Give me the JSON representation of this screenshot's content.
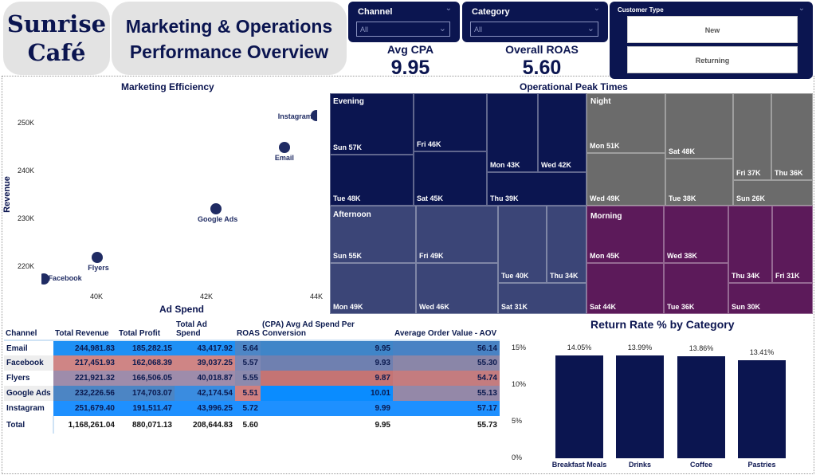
{
  "brand": {
    "line1": "Sunrise",
    "line2": "Café"
  },
  "header": {
    "line1": "Marketing & Operations",
    "line2": "Performance Overview"
  },
  "slicers": {
    "channel": {
      "label": "Channel",
      "value": "All"
    },
    "category": {
      "label": "Category",
      "value": "All"
    },
    "customer_type": {
      "label": "Customer Type",
      "options": [
        "New",
        "Returning"
      ]
    }
  },
  "kpis": {
    "avg_cpa": {
      "label": "Avg CPA",
      "value": "9.95"
    },
    "overall_roas": {
      "label": "Overall ROAS",
      "value": "5.60"
    }
  },
  "scatter": {
    "title": "Marketing Efficiency",
    "xlabel": "Ad Spend",
    "ylabel": "Revenue",
    "xticks": [
      "40K",
      "42K",
      "44K"
    ],
    "yticks": [
      "250K",
      "240K",
      "230K",
      "220K"
    ],
    "points": [
      {
        "label": "Instagram",
        "x": 43996.25,
        "y": 251679.4
      },
      {
        "label": "Email",
        "x": 43417.92,
        "y": 244981.83
      },
      {
        "label": "Google Ads",
        "x": 42174.54,
        "y": 232226.56
      },
      {
        "label": "Flyers",
        "x": 40018.87,
        "y": 221921.32
      },
      {
        "label": "Facebook",
        "x": 39037.25,
        "y": 217451.93
      }
    ]
  },
  "treemap": {
    "title": "Operational Peak Times",
    "groups": [
      {
        "name": "Evening",
        "color": "#0b1550",
        "cells": [
          "Sun 57K",
          "Tue 48K",
          "Fri 46K",
          "Sat 45K",
          "Mon 43K",
          "Wed 42K",
          "Thu 39K"
        ]
      },
      {
        "name": "Night",
        "color": "#6b6b6b",
        "cells": [
          "Mon 51K",
          "Wed 49K",
          "Sat 48K",
          "Tue 38K",
          "Fri 37K",
          "Thu 36K",
          "Sun 26K"
        ]
      },
      {
        "name": "Afternoon",
        "color": "#3b4577",
        "cells": [
          "Sun 55K",
          "Mon 49K",
          "Fri 49K",
          "Wed 46K",
          "Tue 40K",
          "Thu 34K",
          "Sat 31K"
        ]
      },
      {
        "name": "Morning",
        "color": "#5c1a5a",
        "cells": [
          "Mon 45K",
          "Sat 44K",
          "Wed 38K",
          "Tue 36K",
          "Thu 34K",
          "Fri 31K",
          "Sun 30K"
        ]
      }
    ]
  },
  "table": {
    "headers": [
      "Channel",
      "Total Revenue",
      "Total Profit",
      "Total Ad Spend",
      "ROAS",
      "(CPA) Avg Ad Spend Per Conversion",
      "Average Order Value - AOV"
    ],
    "rows": [
      {
        "cells": [
          "Email",
          "244,981.83",
          "185,282.15",
          "43,417.92",
          "5.64",
          "9.95",
          "56.14"
        ],
        "colors": [
          "#1e90f5",
          "#1e90f5",
          "#1e90f5",
          "#4d86c6",
          "#3f85c8",
          "#4882c4"
        ]
      },
      {
        "cells": [
          "Facebook",
          "217,451.93",
          "162,068.39",
          "39,037.25",
          "5.57",
          "9.93",
          "55.30"
        ],
        "colors": [
          "#cf8585",
          "#cf8585",
          "#cf8585",
          "#7f88b3",
          "#6f80b0",
          "#8a86a8"
        ]
      },
      {
        "cells": [
          "Flyers",
          "221,921.32",
          "166,506.05",
          "40,018.87",
          "5.55",
          "9.87",
          "54.74"
        ],
        "colors": [
          "#9e8cab",
          "#9e8cab",
          "#9e8cab",
          "#8c8aad",
          "#c47474",
          "#c47c7f"
        ]
      },
      {
        "cells": [
          "Google Ads",
          "232,226.56",
          "174,703.07",
          "42,174.54",
          "5.51",
          "10.01",
          "55.13"
        ],
        "colors": [
          "#4c85c4",
          "#4c85c4",
          "#3a8ce0",
          "#d08080",
          "#0a8cff",
          "#9488a8"
        ]
      },
      {
        "cells": [
          "Instagram",
          "251,679.40",
          "191,511.47",
          "43,996.25",
          "5.72",
          "9.99",
          "57.17"
        ],
        "colors": [
          "#1e90ff",
          "#1e90ff",
          "#1e90ff",
          "#1e90ff",
          "#1e90ff",
          "#1e90ff"
        ]
      }
    ],
    "total": [
      "Total",
      "1,168,261.04",
      "880,071.13",
      "208,644.83",
      "5.60",
      "9.95",
      "55.73"
    ]
  },
  "chart_data": {
    "type": "bar",
    "title": "Return Rate % by Category",
    "categories": [
      "Breakfast Meals",
      "Drinks",
      "Coffee",
      "Pastries"
    ],
    "values": [
      14.05,
      13.99,
      13.86,
      13.41
    ],
    "data_labels": [
      "14.05%",
      "13.99%",
      "13.86%",
      "13.41%"
    ],
    "yticks": [
      "15%",
      "10%",
      "5%",
      "0%"
    ],
    "ylim": [
      0,
      15
    ],
    "color": "#0b1550"
  }
}
